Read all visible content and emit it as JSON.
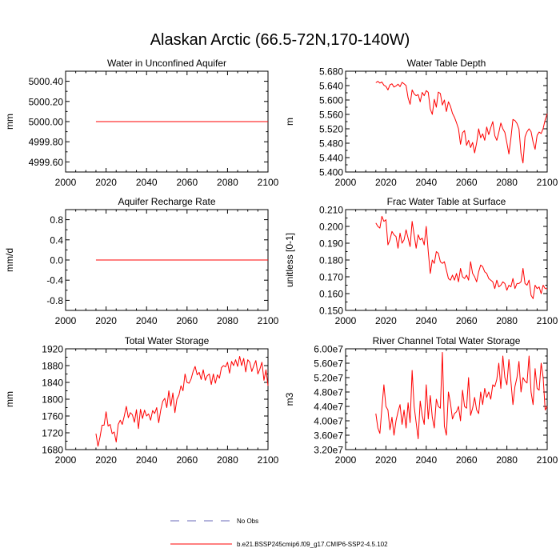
{
  "figure": {
    "title": "Alaskan Arctic (66.5-72N,170-140W)",
    "legend": {
      "obs_label": "No Obs",
      "model_label": "b.e21.BSSP245cmip6.f09_g17.CMIP6-SSP2-4.5.102",
      "obs_color": "#6a6ab8",
      "model_color": "#ff0000"
    }
  },
  "chart_data": [
    {
      "type": "line",
      "title": "Water in Unconfined Aquifer",
      "ylabel": "mm",
      "xlabel": "",
      "xlim": [
        2000,
        2100
      ],
      "ylim": [
        4999.5,
        5000.5
      ],
      "xticks": [
        2000,
        2020,
        2040,
        2060,
        2080,
        2100
      ],
      "yticks": [
        4999.6,
        4999.8,
        5000.0,
        5000.2,
        5000.4
      ],
      "ytick_labels": [
        "4999.60",
        "4999.80",
        "5000.00",
        "5000.20",
        "5000.40"
      ],
      "series": [
        {
          "name": "b.e21.BSSP245cmip6.f09_g17.CMIP6-SSP2-4.5.102",
          "x_start": 2015,
          "x_end": 2100,
          "constant": 5000.0
        }
      ]
    },
    {
      "type": "line",
      "title": "Water Table Depth",
      "ylabel": "m",
      "xlabel": "",
      "xlim": [
        2000,
        2100
      ],
      "ylim": [
        5.4,
        5.68
      ],
      "xticks": [
        2000,
        2020,
        2040,
        2060,
        2080,
        2100
      ],
      "yticks": [
        5.4,
        5.44,
        5.48,
        5.52,
        5.56,
        5.6,
        5.64,
        5.68
      ],
      "ytick_labels": [
        "5.400",
        "5.440",
        "5.480",
        "5.520",
        "5.560",
        "5.600",
        "5.640",
        "5.680"
      ],
      "series": [
        {
          "name": "b.e21.BSSP245cmip6.f09_g17.CMIP6-SSP2-4.5.102",
          "x_start": 2015,
          "values": [
            5.648,
            5.652,
            5.647,
            5.65,
            5.641,
            5.638,
            5.628,
            5.642,
            5.645,
            5.636,
            5.639,
            5.644,
            5.637,
            5.649,
            5.645,
            5.64,
            5.606,
            5.588,
            5.628,
            5.617,
            5.612,
            5.615,
            5.595,
            5.621,
            5.612,
            5.626,
            5.621,
            5.575,
            5.56,
            5.602,
            5.58,
            5.622,
            5.618,
            5.586,
            5.6,
            5.568,
            5.595,
            5.583,
            5.563,
            5.552,
            5.537,
            5.52,
            5.477,
            5.509,
            5.515,
            5.474,
            5.488,
            5.468,
            5.482,
            5.453,
            5.481,
            5.52,
            5.495,
            5.506,
            5.488,
            5.525,
            5.504,
            5.523,
            5.54,
            5.501,
            5.488,
            5.51,
            5.536,
            5.52,
            5.51,
            5.481,
            5.45,
            5.494,
            5.546,
            5.543,
            5.535,
            5.52,
            5.452,
            5.425,
            5.498,
            5.512,
            5.52,
            5.512,
            5.483,
            5.463,
            5.502,
            5.511,
            5.507,
            5.521,
            5.545,
            5.562
          ]
        }
      ]
    },
    {
      "type": "line",
      "title": "Aquifer Recharge Rate",
      "ylabel": "mm/d",
      "xlabel": "",
      "xlim": [
        2000,
        2100
      ],
      "ylim": [
        -1.0,
        1.0
      ],
      "xticks": [
        2000,
        2020,
        2040,
        2060,
        2080,
        2100
      ],
      "yticks": [
        -0.8,
        -0.4,
        0.0,
        0.4,
        0.8
      ],
      "ytick_labels": [
        "-0.8",
        "-0.4",
        "0.0",
        "0.4",
        "0.8"
      ],
      "series": [
        {
          "name": "b.e21.BSSP245cmip6.f09_g17.CMIP6-SSP2-4.5.102",
          "x_start": 2015,
          "x_end": 2100,
          "constant": 0.0
        }
      ]
    },
    {
      "type": "line",
      "title": "Frac Water Table at Surface",
      "ylabel": "unitless [0-1]",
      "xlabel": "",
      "xlim": [
        2000,
        2100
      ],
      "ylim": [
        0.15,
        0.21
      ],
      "xticks": [
        2000,
        2020,
        2040,
        2060,
        2080,
        2100
      ],
      "yticks": [
        0.15,
        0.16,
        0.17,
        0.18,
        0.19,
        0.2,
        0.21
      ],
      "ytick_labels": [
        "0.150",
        "0.160",
        "0.170",
        "0.180",
        "0.190",
        "0.200",
        "0.210"
      ],
      "series": [
        {
          "name": "b.e21.BSSP245cmip6.f09_g17.CMIP6-SSP2-4.5.102",
          "x_start": 2015,
          "values": [
            0.202,
            0.2,
            0.199,
            0.206,
            0.203,
            0.204,
            0.189,
            0.192,
            0.197,
            0.195,
            0.194,
            0.187,
            0.196,
            0.19,
            0.192,
            0.198,
            0.193,
            0.188,
            0.203,
            0.195,
            0.187,
            0.195,
            0.192,
            0.193,
            0.189,
            0.2,
            0.185,
            0.172,
            0.18,
            0.178,
            0.185,
            0.184,
            0.179,
            0.178,
            0.179,
            0.174,
            0.169,
            0.168,
            0.171,
            0.168,
            0.172,
            0.167,
            0.175,
            0.17,
            0.169,
            0.171,
            0.168,
            0.179,
            0.172,
            0.17,
            0.167,
            0.173,
            0.177,
            0.176,
            0.173,
            0.172,
            0.169,
            0.168,
            0.167,
            0.163,
            0.168,
            0.164,
            0.165,
            0.167,
            0.166,
            0.162,
            0.165,
            0.164,
            0.169,
            0.163,
            0.166,
            0.166,
            0.167,
            0.175,
            0.166,
            0.165,
            0.168,
            0.159,
            0.157,
            0.165,
            0.163,
            0.164,
            0.16,
            0.165,
            0.163,
            0.163
          ]
        }
      ]
    },
    {
      "type": "line",
      "title": "Total Water Storage",
      "ylabel": "mm",
      "xlabel": "",
      "xlim": [
        2000,
        2100
      ],
      "ylim": [
        1680,
        1920
      ],
      "xticks": [
        2000,
        2020,
        2040,
        2060,
        2080,
        2100
      ],
      "yticks": [
        1680,
        1720,
        1760,
        1800,
        1840,
        1880,
        1920
      ],
      "ytick_labels": [
        "1680",
        "1720",
        "1760",
        "1800",
        "1840",
        "1880",
        "1920"
      ],
      "series": [
        {
          "name": "b.e21.BSSP245cmip6.f09_g17.CMIP6-SSP2-4.5.102",
          "x_start": 2015,
          "values": [
            1718,
            1688,
            1710,
            1738,
            1738,
            1770,
            1736,
            1740,
            1718,
            1722,
            1698,
            1740,
            1750,
            1740,
            1760,
            1783,
            1756,
            1768,
            1763,
            1745,
            1775,
            1730,
            1776,
            1754,
            1774,
            1760,
            1765,
            1750,
            1773,
            1766,
            1780,
            1744,
            1774,
            1795,
            1802,
            1780,
            1820,
            1784,
            1815,
            1768,
            1800,
            1810,
            1832,
            1820,
            1860,
            1840,
            1838,
            1848,
            1866,
            1878,
            1858,
            1864,
            1847,
            1870,
            1845,
            1856,
            1860,
            1835,
            1860,
            1838,
            1858,
            1850,
            1875,
            1880,
            1877,
            1888,
            1862,
            1890,
            1880,
            1894,
            1878,
            1902,
            1880,
            1897,
            1865,
            1894,
            1888,
            1866,
            1880,
            1892,
            1860,
            1872,
            1888,
            1845,
            1870,
            1832
          ]
        }
      ]
    },
    {
      "type": "line",
      "title": "River Channel Total Water Storage",
      "ylabel": "m3",
      "xlabel": "",
      "xlim": [
        2000,
        2100
      ],
      "ylim": [
        32000000,
        60000000
      ],
      "xticks": [
        2000,
        2020,
        2040,
        2060,
        2080,
        2100
      ],
      "yticks": [
        32000000,
        36000000,
        40000000,
        44000000,
        48000000,
        52000000,
        56000000,
        60000000
      ],
      "ytick_labels": [
        "3.20e7",
        "3.60e7",
        "4.00e7",
        "4.40e7",
        "4.80e7",
        "5.20e7",
        "5.60e7",
        "6.00e7"
      ],
      "series": [
        {
          "name": "b.e21.BSSP245cmip6.f09_g17.CMIP6-SSP2-4.5.102",
          "x_start": 2015,
          "values": [
            42000000,
            38000000,
            36500000,
            43500000,
            50000000,
            44000000,
            43000000,
            37500000,
            41000000,
            36000000,
            40000000,
            42500000,
            44500000,
            39000000,
            43000000,
            38000000,
            45000000,
            39500000,
            54000000,
            44000000,
            39500000,
            35000000,
            45500000,
            41500000,
            39000000,
            50000000,
            40500000,
            47000000,
            41000000,
            38000000,
            46000000,
            44000000,
            43500000,
            59000000,
            38500000,
            36000000,
            48000000,
            45000000,
            40500000,
            42000000,
            42500000,
            44000000,
            40000000,
            48500000,
            44000000,
            43500000,
            52000000,
            41500000,
            43500000,
            46500000,
            43000000,
            42000000,
            48000000,
            44500000,
            49000000,
            46500000,
            48000000,
            46000000,
            50000000,
            49500000,
            51500000,
            56000000,
            49000000,
            58000000,
            52000000,
            50000000,
            57000000,
            51000000,
            44500000,
            49500000,
            52000000,
            56500000,
            48000000,
            52000000,
            51000000,
            50500000,
            58000000,
            48000000,
            44500000,
            54500000,
            49000000,
            48500000,
            56000000,
            52000000,
            43000000,
            44000000
          ]
        }
      ]
    }
  ]
}
